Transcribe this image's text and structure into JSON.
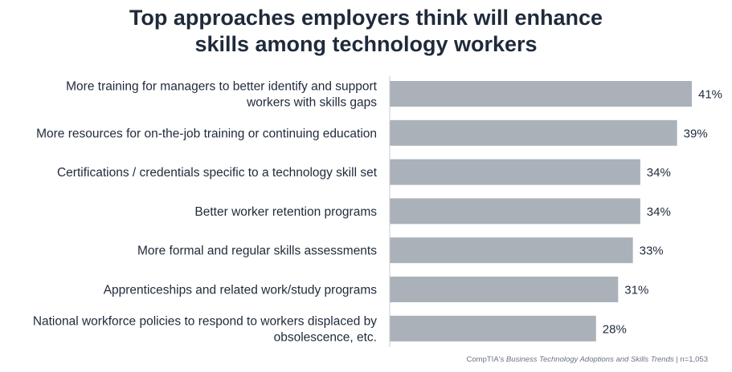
{
  "chart_data": {
    "type": "bar",
    "orientation": "horizontal",
    "title": [
      "Top approaches employers think will enhance",
      "skills among technology workers"
    ],
    "categories": [
      [
        "More training for managers to better identify and support",
        "workers with skills gaps"
      ],
      [
        "More resources for on-the-job training or continuing education"
      ],
      [
        "Certifications / credentials specific to a technology skill set"
      ],
      [
        "Better worker retention programs"
      ],
      [
        "More formal and regular skills assessments"
      ],
      [
        "Apprenticeships and related work/study programs"
      ],
      [
        "National workforce policies to respond to workers displaced by",
        "obsolescence, etc."
      ]
    ],
    "values": [
      41,
      39,
      34,
      34,
      33,
      31,
      28
    ],
    "value_labels": [
      "41%",
      "39%",
      "34%",
      "34%",
      "33%",
      "31%",
      "28%"
    ],
    "unit": "%",
    "bar_color": "#aab1b9",
    "axis_color": "#c7ccd2",
    "grid": false,
    "legend": "none"
  },
  "source": {
    "prefix": "CompTIA's ",
    "publication": "Business Technology Adoptions and Skills Trends",
    "suffix": " | n=1,053"
  }
}
